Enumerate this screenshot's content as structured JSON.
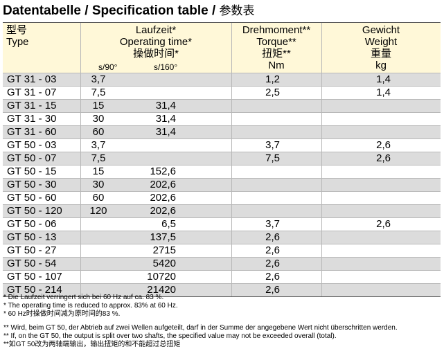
{
  "title": {
    "main": "Datentabelle / Specification table / ",
    "cjk": "参数表"
  },
  "header": {
    "type": {
      "cn": "型号",
      "en": "Type"
    },
    "time": {
      "de": "Laufzeit*",
      "en": "Operating time*",
      "cn": "操做时间*",
      "sub1": "s/90°",
      "sub2": "s/160°"
    },
    "torque": {
      "de": "Drehmoment**",
      "en": "Torque**",
      "cn": "扭矩**",
      "unit": "Nm"
    },
    "weight": {
      "de": "Gewicht",
      "en": "Weight",
      "cn": "重量",
      "unit": "kg"
    }
  },
  "rows": [
    {
      "type": "GT 31 - 03",
      "s90": "3,7",
      "s160": "",
      "torque": "1,2",
      "weight": "1,4"
    },
    {
      "type": "GT 31 - 07",
      "s90": "7,5",
      "s160": "",
      "torque": "2,5",
      "weight": "1,4"
    },
    {
      "type": "GT 31 - 15",
      "s90": "15",
      "s160": "31,4",
      "torque": "",
      "weight": ""
    },
    {
      "type": "GT 31 - 30",
      "s90": "30",
      "s160": "31,4",
      "torque": "",
      "weight": ""
    },
    {
      "type": "GT 31 - 60",
      "s90": "60",
      "s160": "31,4",
      "torque": "",
      "weight": ""
    },
    {
      "type": "GT 50 - 03",
      "s90": "3,7",
      "s160": "",
      "torque": "3,7",
      "weight": "2,6"
    },
    {
      "type": "GT 50 - 07",
      "s90": "7,5",
      "s160": "",
      "torque": "7,5",
      "weight": "2,6"
    },
    {
      "type": "GT 50 - 15",
      "s90": "15",
      "s160": "152,6",
      "torque": "",
      "weight": ""
    },
    {
      "type": "GT 50 - 30",
      "s90": "30",
      "s160": "202,6",
      "torque": "",
      "weight": ""
    },
    {
      "type": "GT 50 - 60",
      "s90": "60",
      "s160": "202,6",
      "torque": "",
      "weight": ""
    },
    {
      "type": "GT 50 - 120",
      "s90": "120",
      "s160": "202,6",
      "torque": "",
      "weight": ""
    },
    {
      "type": "GT 50 - 06",
      "s90": "",
      "s160": "6,5",
      "torque": "3,7",
      "weight": "2,6"
    },
    {
      "type": "GT 50 - 13",
      "s90": "",
      "s160": "137,5",
      "torque": "2,6",
      "weight": ""
    },
    {
      "type": "GT 50 - 27",
      "s90": "",
      "s160": "2715",
      "torque": "2,6",
      "weight": ""
    },
    {
      "type": "GT 50 - 54",
      "s90": "",
      "s160": "5420",
      "torque": "2,6",
      "weight": ""
    },
    {
      "type": "GT 50 - 107",
      "s90": "",
      "s160": "10720",
      "torque": "2,6",
      "weight": ""
    },
    {
      "type": "GT 50 - 214",
      "s90": "",
      "s160": "21420",
      "torque": "2,6",
      "weight": ""
    }
  ],
  "footnotes": [
    "* Die Laufzeit verringert sich bei 60 Hz auf ca. 83 %.",
    "* The operating time is reduced to approx. 83% at 60 Hz.",
    "* 60 Hz时操做时间减为原时间的83 %.",
    "** Wird, beim GT 50, der Abtrieb auf zwei Wellen aufgeteilt, darf in der Summe der angegebene Wert nicht überschritten werden.",
    "** If, on the GT 50, the output is split over two shafts, the specified value may not be exceeded overall (total).",
    "**如GT 50改为两轴端输出，输出扭矩的和不能超过总扭矩"
  ],
  "colors": {
    "header_bg": "#fff8d8",
    "odd_row_bg": "#dcdcdc",
    "even_row_bg": "#ffffff",
    "rule": "#b8b8b8"
  }
}
